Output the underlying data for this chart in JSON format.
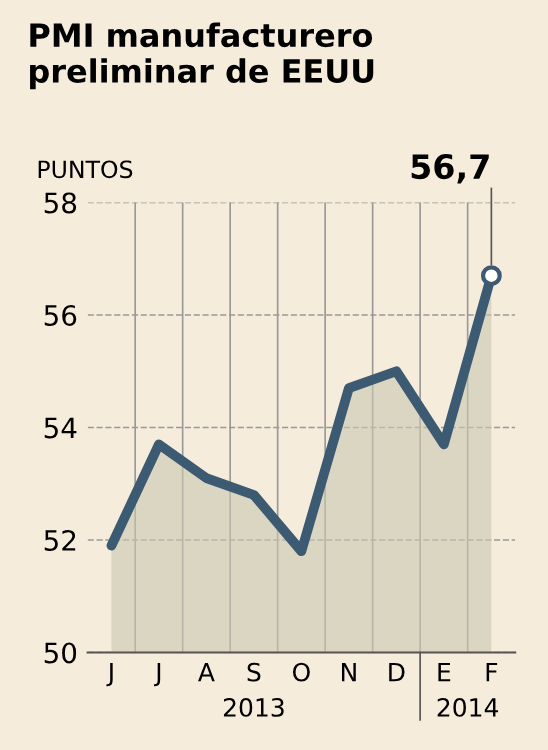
{
  "chart_data": {
    "type": "area",
    "title": "PMI manufacturero\npreliminar de EEUU",
    "ylabel": "PUNTOS",
    "categories": [
      "J",
      "J",
      "A",
      "S",
      "O",
      "N",
      "D",
      "E",
      "F"
    ],
    "values": [
      51.9,
      53.7,
      53.1,
      52.8,
      51.8,
      54.7,
      55.0,
      53.7,
      56.7
    ],
    "value_labels": [
      null,
      null,
      null,
      null,
      null,
      null,
      null,
      null,
      "56,7"
    ],
    "color": "#3d5a73",
    "ylim": [
      50,
      58
    ],
    "yticks": [
      50,
      52,
      54,
      56,
      58
    ],
    "grid": true,
    "annotations": [
      "2013",
      "2014"
    ]
  }
}
